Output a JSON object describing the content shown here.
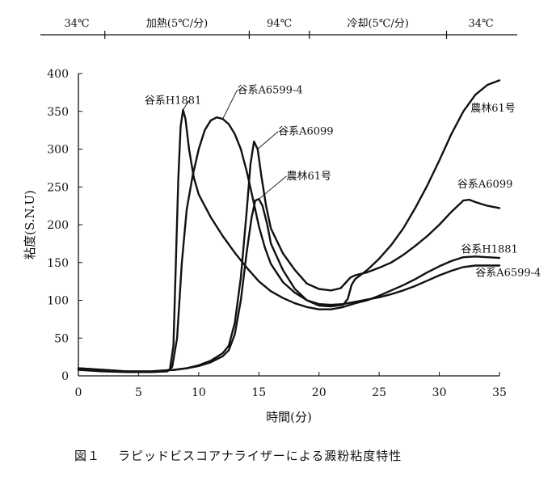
{
  "chart_data": {
    "type": "line",
    "xlabel": "時間(分)",
    "ylabel": "粘度(S.N.U)",
    "xlim": [
      0,
      35
    ],
    "ylim": [
      0,
      400
    ],
    "x_ticks": [
      0,
      5,
      10,
      15,
      20,
      25,
      30,
      35
    ],
    "y_ticks": [
      0,
      50,
      100,
      150,
      200,
      250,
      300,
      350,
      400
    ],
    "grid": false,
    "legend": "none (series labeled directly on lines)",
    "temperature_program": [
      {
        "label": "34℃",
        "from": 0,
        "to": 2.2
      },
      {
        "label": "加熱(5℃/分)",
        "from": 2.2,
        "to": 14.2
      },
      {
        "label": "94℃",
        "from": 14.2,
        "to": 19.2
      },
      {
        "label": "冷却(5℃/分)",
        "from": 19.2,
        "to": 30.6
      },
      {
        "label": "34℃",
        "from": 30.6,
        "to": 35
      }
    ],
    "series": [
      {
        "name": "谷系H1881",
        "points": [
          [
            0,
            10
          ],
          [
            2,
            8
          ],
          [
            4,
            6
          ],
          [
            6,
            5
          ],
          [
            7,
            6
          ],
          [
            7.6,
            8
          ],
          [
            7.9,
            40
          ],
          [
            8.1,
            150
          ],
          [
            8.3,
            260
          ],
          [
            8.5,
            330
          ],
          [
            8.7,
            352
          ],
          [
            8.9,
            340
          ],
          [
            9.2,
            300
          ],
          [
            9.6,
            262
          ],
          [
            10,
            240
          ],
          [
            11,
            210
          ],
          [
            12,
            185
          ],
          [
            13,
            163
          ],
          [
            14,
            143
          ],
          [
            15,
            125
          ],
          [
            16,
            112
          ],
          [
            17,
            103
          ],
          [
            18,
            96
          ],
          [
            19,
            91
          ],
          [
            20,
            88
          ],
          [
            21,
            88
          ],
          [
            22,
            91
          ],
          [
            23,
            96
          ],
          [
            24,
            100
          ],
          [
            25,
            106
          ],
          [
            26,
            113
          ],
          [
            27,
            120
          ],
          [
            28,
            128
          ],
          [
            29,
            137
          ],
          [
            30,
            145
          ],
          [
            31,
            152
          ],
          [
            32,
            157
          ],
          [
            33,
            158
          ],
          [
            34,
            157
          ],
          [
            35,
            156
          ]
        ],
        "label_pos": [
          5.5,
          360
        ],
        "end_label_pos": [
          31.8,
          163
        ]
      },
      {
        "name": "谷系A6599-4",
        "points": [
          [
            0,
            8
          ],
          [
            2,
            6
          ],
          [
            4,
            5
          ],
          [
            6,
            5
          ],
          [
            7.4,
            6
          ],
          [
            7.8,
            12
          ],
          [
            8.2,
            50
          ],
          [
            8.6,
            150
          ],
          [
            9,
            220
          ],
          [
            9.5,
            265
          ],
          [
            10,
            300
          ],
          [
            10.5,
            325
          ],
          [
            11,
            338
          ],
          [
            11.5,
            342
          ],
          [
            12,
            340
          ],
          [
            12.5,
            333
          ],
          [
            13,
            320
          ],
          [
            13.5,
            300
          ],
          [
            14,
            270
          ],
          [
            14.5,
            235
          ],
          [
            15,
            198
          ],
          [
            15.5,
            170
          ],
          [
            16,
            148
          ],
          [
            17,
            124
          ],
          [
            18,
            110
          ],
          [
            19,
            100
          ],
          [
            20,
            95
          ],
          [
            21,
            94
          ],
          [
            22,
            95
          ],
          [
            23,
            98
          ],
          [
            24,
            101
          ],
          [
            25,
            104
          ],
          [
            26,
            108
          ],
          [
            27,
            113
          ],
          [
            28,
            119
          ],
          [
            29,
            126
          ],
          [
            30,
            133
          ],
          [
            31,
            139
          ],
          [
            32,
            144
          ],
          [
            33,
            146
          ],
          [
            34,
            146
          ],
          [
            35,
            146
          ]
        ],
        "label_pos": [
          13.2,
          374
        ],
        "end_label_pos": [
          33,
          132
        ]
      },
      {
        "name": "谷系A6099",
        "points": [
          [
            0,
            10
          ],
          [
            2,
            8
          ],
          [
            4,
            6
          ],
          [
            6,
            6
          ],
          [
            8,
            8
          ],
          [
            9,
            10
          ],
          [
            10,
            14
          ],
          [
            11,
            20
          ],
          [
            12,
            30
          ],
          [
            12.5,
            40
          ],
          [
            13,
            70
          ],
          [
            13.5,
            130
          ],
          [
            14,
            220
          ],
          [
            14.3,
            280
          ],
          [
            14.6,
            310
          ],
          [
            14.9,
            300
          ],
          [
            15.2,
            265
          ],
          [
            15.6,
            225
          ],
          [
            16,
            195
          ],
          [
            17,
            162
          ],
          [
            18,
            140
          ],
          [
            19,
            122
          ],
          [
            20,
            115
          ],
          [
            21,
            113
          ],
          [
            21.8,
            116
          ],
          [
            22.2,
            123
          ],
          [
            22.6,
            130
          ],
          [
            23,
            133
          ],
          [
            24,
            137
          ],
          [
            25,
            143
          ],
          [
            26,
            150
          ],
          [
            27,
            160
          ],
          [
            28,
            172
          ],
          [
            29,
            185
          ],
          [
            30,
            200
          ],
          [
            31,
            217
          ],
          [
            32,
            232
          ],
          [
            32.5,
            233
          ],
          [
            33,
            230
          ],
          [
            34,
            225
          ],
          [
            35,
            222
          ]
        ],
        "label_pos": [
          16.6,
          319
        ],
        "end_label_pos": [
          31.5,
          249
        ]
      },
      {
        "name": "農林61号",
        "points": [
          [
            0,
            9
          ],
          [
            2,
            7
          ],
          [
            4,
            6
          ],
          [
            6,
            6
          ],
          [
            8,
            8
          ],
          [
            9,
            10
          ],
          [
            10,
            13
          ],
          [
            11,
            18
          ],
          [
            12,
            26
          ],
          [
            12.5,
            34
          ],
          [
            13,
            55
          ],
          [
            13.5,
            100
          ],
          [
            14,
            165
          ],
          [
            14.4,
            210
          ],
          [
            14.7,
            232
          ],
          [
            15,
            234
          ],
          [
            15.3,
            225
          ],
          [
            15.7,
            200
          ],
          [
            16,
            175
          ],
          [
            17,
            140
          ],
          [
            18,
            115
          ],
          [
            19,
            100
          ],
          [
            20,
            93
          ],
          [
            21,
            92
          ],
          [
            22,
            94
          ],
          [
            22.4,
            102
          ],
          [
            22.7,
            120
          ],
          [
            23,
            128
          ],
          [
            24,
            140
          ],
          [
            25,
            155
          ],
          [
            26,
            173
          ],
          [
            27,
            195
          ],
          [
            28,
            222
          ],
          [
            29,
            252
          ],
          [
            30,
            285
          ],
          [
            31,
            320
          ],
          [
            32,
            350
          ],
          [
            33,
            372
          ],
          [
            34,
            385
          ],
          [
            35,
            391
          ]
        ],
        "label_pos": [
          17.3,
          260
        ],
        "end_label_pos": [
          32.6,
          350
        ]
      }
    ]
  },
  "caption": {
    "number": "図１",
    "text": "ラピッドビスコアナライザーによる澱粉粘度特性"
  }
}
